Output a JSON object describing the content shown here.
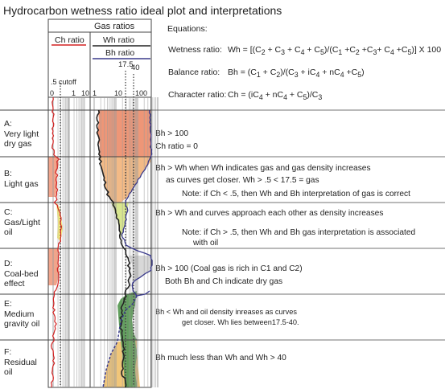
{
  "title": "Hydrocarbon wetness ratio ideal plot and interpretations",
  "header": {
    "gas_ratios": "Gas ratios",
    "ch_ratio": "Ch ratio",
    "wh_ratio": "Wh ratio",
    "bh_ratio": "Bh ratio",
    "cutoff": ".5 cutoff",
    "mark_17_5": "17.5",
    "mark_40": "40",
    "ch_ticks": [
      "0",
      "1",
      "10"
    ],
    "wh_ticks": [
      "1",
      "10",
      "100"
    ]
  },
  "equations": {
    "heading": "Equations:",
    "wetness_label": "Wetness ratio:",
    "balance_label": "Balance ratio:",
    "character_label": "Character ratio:"
  },
  "zones": [
    {
      "id": "A",
      "label": "A:",
      "lines": [
        "Very light",
        "dry gas"
      ]
    },
    {
      "id": "B",
      "label": "B:",
      "lines": [
        "Light gas"
      ]
    },
    {
      "id": "C",
      "label": "C:",
      "lines": [
        "Gas/Light",
        "oil"
      ]
    },
    {
      "id": "D",
      "label": "D:",
      "lines": [
        "Coal-bed",
        "effect"
      ]
    },
    {
      "id": "E",
      "label": "E:",
      "lines": [
        "Medium",
        "gravity oil"
      ]
    },
    {
      "id": "F",
      "label": "F:",
      "lines": [
        "Residual",
        "oil"
      ]
    }
  ],
  "interpretations": {
    "a1": "Bh > 100",
    "a2": "Ch ratio = 0",
    "b1": "Bh > Wh when Wh indicates gas and gas density increases",
    "b2": "as curves get closer. Wh > .5 < 17.5 = gas",
    "b3": "Note: if Ch < .5, then Wh and Bh interpretation of gas is correct",
    "c1": "Bh > Wh and curves approach each other as density increases",
    "c2": "Note: if Ch > .5, then Wh and Bh gas interpretation is associated",
    "c3": "with oil",
    "d1": "Bh > 100  (Coal gas is rich in C1 and C2)",
    "d2": "Both Bh and Ch indicate dry gas",
    "e1": "Bh < Wh and oil density inreases as curves",
    "e2": "get closer. Wh lies between17.5-40.",
    "f1": "Bh much less than Wh and Wh > 40"
  },
  "colors": {
    "ch_line": "#d32222",
    "wh_line": "#222222",
    "bh_line": "#3a3a8c",
    "dry_gas_fill": "#ec8b68",
    "gas_fill": "#f2b279",
    "light_oil_fill": "#d8e68f",
    "oil_fill": "#5a9a55",
    "residual_fill": "#f0c06a",
    "coal_fill": "#d8d8d8",
    "ch_fill": "#ee9477",
    "ch_yellow": "#f7ee80"
  }
}
